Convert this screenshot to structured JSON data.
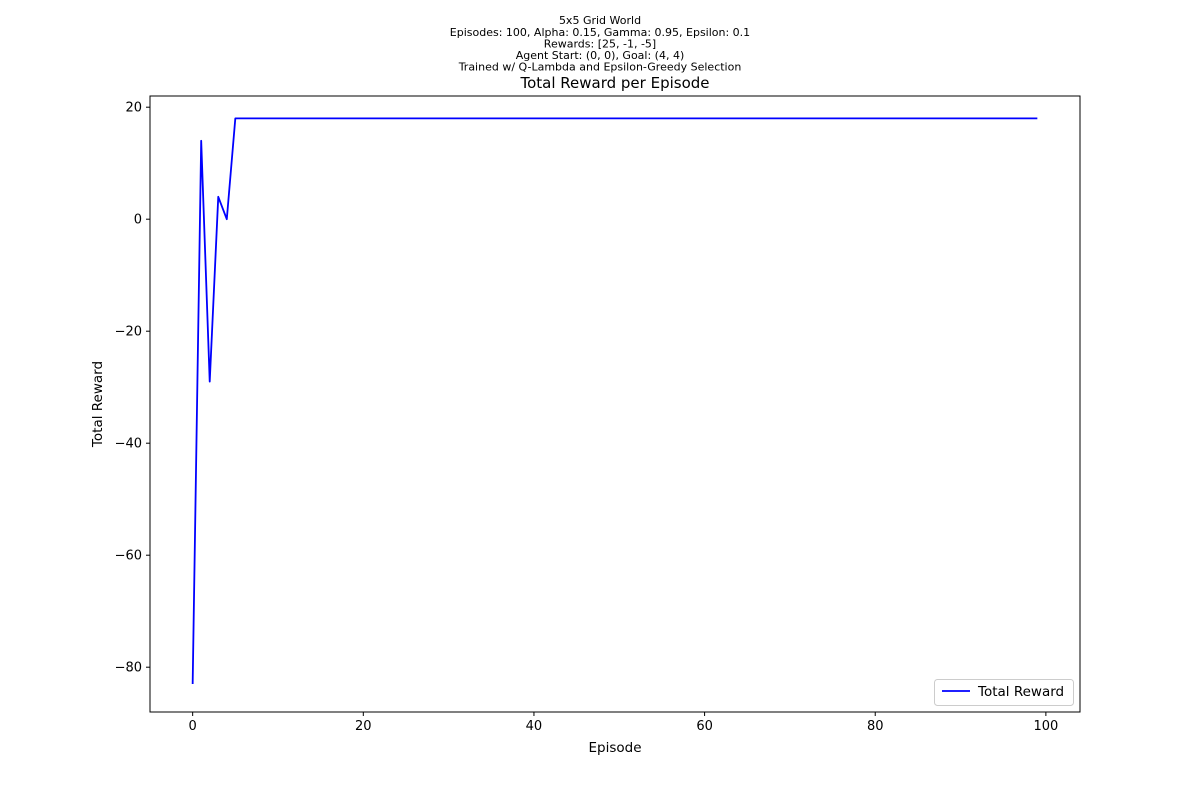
{
  "figure": {
    "suptitle_lines": [
      "5x5 Grid World",
      "Episodes: 100, Alpha: 0.15, Gamma: 0.95, Epsilon: 0.1",
      "Rewards: [25, -1, -5]",
      "Agent Start: (0, 0), Goal: (4, 4)",
      "Trained w/ Q-Lambda and Epsilon-Greedy Selection"
    ]
  },
  "chart_data": {
    "type": "line",
    "title": "Total Reward per Episode",
    "xlabel": "Episode",
    "ylabel": "Total Reward",
    "xlim": [
      -5,
      104
    ],
    "ylim": [
      -88,
      22
    ],
    "xticks": [
      0,
      20,
      40,
      60,
      80,
      100
    ],
    "xtick_labels": [
      "0",
      "20",
      "40",
      "60",
      "80",
      "100"
    ],
    "yticks": [
      -80,
      -60,
      -40,
      -20,
      0,
      20
    ],
    "ytick_labels": [
      "−80",
      "−60",
      "−40",
      "−20",
      "0",
      "20"
    ],
    "grid": false,
    "legend": {
      "placement": "lower-right"
    },
    "series": [
      {
        "name": "Total Reward",
        "color": "#0000ff",
        "x_start": 0,
        "x_end": 99,
        "values": [
          -83,
          14,
          -29,
          4,
          0,
          18,
          18,
          18,
          18,
          18,
          18,
          18,
          18,
          18,
          18,
          18,
          18,
          18,
          18,
          18,
          18,
          18,
          18,
          18,
          18,
          18,
          18,
          18,
          18,
          18,
          18,
          18,
          18,
          18,
          18,
          18,
          18,
          18,
          18,
          18,
          18,
          18,
          18,
          18,
          18,
          18,
          18,
          18,
          18,
          18,
          18,
          18,
          18,
          18,
          18,
          18,
          18,
          18,
          18,
          18,
          18,
          18,
          18,
          18,
          18,
          18,
          18,
          18,
          18,
          18,
          18,
          18,
          18,
          18,
          18,
          18,
          18,
          18,
          18,
          18,
          18,
          18,
          18,
          18,
          18,
          18,
          18,
          18,
          18,
          18,
          18,
          18,
          18,
          18,
          18,
          18,
          18,
          18,
          18,
          18
        ]
      }
    ]
  }
}
